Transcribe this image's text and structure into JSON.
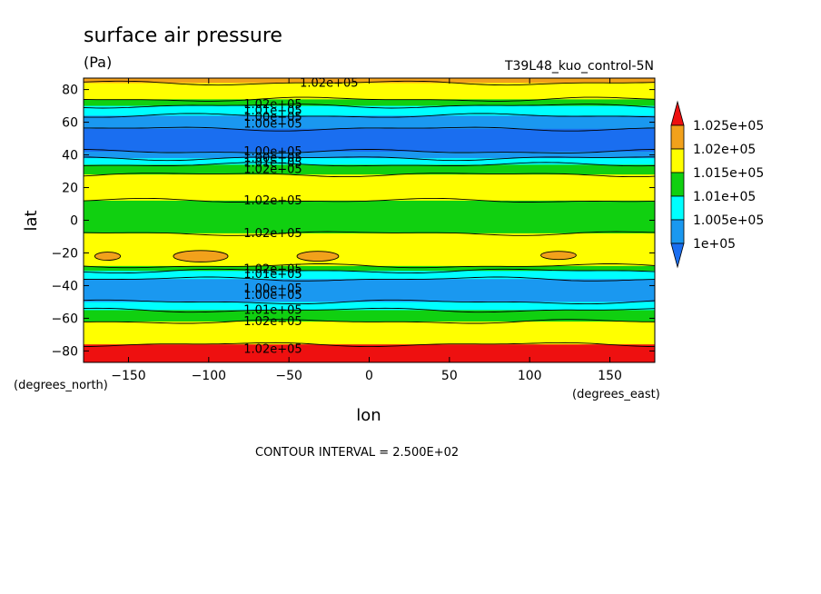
{
  "chart_data": {
    "type": "heatmap",
    "subtype": "filled-contour",
    "title": "surface air pressure",
    "units": "(Pa)",
    "dataset": "T39L48_kuo_control-5N",
    "xlabel": "lon",
    "ylabel": "lat",
    "x_unit_label": "(degrees_east)",
    "y_unit_label": "(degrees_north)",
    "xlim": [
      -178,
      178
    ],
    "ylim": [
      -87,
      87
    ],
    "x_ticks": [
      {
        "value": -150,
        "label": "−150"
      },
      {
        "value": -100,
        "label": "−100"
      },
      {
        "value": -50,
        "label": "−50"
      },
      {
        "value": 0,
        "label": "0"
      },
      {
        "value": 50,
        "label": "50"
      },
      {
        "value": 100,
        "label": "100"
      },
      {
        "value": 150,
        "label": "150"
      }
    ],
    "y_ticks": [
      {
        "value": 80,
        "label": "80"
      },
      {
        "value": 60,
        "label": "60"
      },
      {
        "value": 40,
        "label": "40"
      },
      {
        "value": 20,
        "label": "20"
      },
      {
        "value": 0,
        "label": "0"
      },
      {
        "value": -20,
        "label": "−20"
      },
      {
        "value": -40,
        "label": "−40"
      },
      {
        "value": -60,
        "label": "−60"
      },
      {
        "value": -80,
        "label": "−80"
      }
    ],
    "contour_interval": "CONTOUR INTERVAL = 2.500E+02",
    "legend": {
      "placement": "right",
      "levels": [
        {
          "label": "1.025e+05",
          "color": "#f2a11b"
        },
        {
          "label": "1.02e+05",
          "color": "#ffff00"
        },
        {
          "label": "1.015e+05",
          "color": "#10d010"
        },
        {
          "label": "1.01e+05",
          "color": "#00ffff"
        },
        {
          "label": "1.005e+05",
          "color": "#1a98f0"
        },
        {
          "label": "1e+05",
          "color": "#1a98f0"
        }
      ],
      "over_color": "#ee1010",
      "under_color": "#1a6ef0"
    },
    "latitude_bands": [
      {
        "lat_top": 87,
        "lat_bottom": 84,
        "value_pa": 102600,
        "color": "#f2a11b"
      },
      {
        "lat_top": 84,
        "lat_bottom": 74,
        "value_pa": 102200,
        "color": "#ffff00"
      },
      {
        "lat_top": 74,
        "lat_bottom": 70,
        "value_pa": 101700,
        "color": "#10d010"
      },
      {
        "lat_top": 70,
        "lat_bottom": 64,
        "value_pa": 101300,
        "color": "#00ffff"
      },
      {
        "lat_top": 64,
        "lat_bottom": 56,
        "value_pa": 100800,
        "color": "#1a98f0"
      },
      {
        "lat_top": 56,
        "lat_bottom": 42,
        "value_pa": 100200,
        "color": "#1a6ef0"
      },
      {
        "lat_top": 42,
        "lat_bottom": 38,
        "value_pa": 100800,
        "color": "#1a98f0"
      },
      {
        "lat_top": 38,
        "lat_bottom": 34,
        "value_pa": 101300,
        "color": "#00ffff"
      },
      {
        "lat_top": 34,
        "lat_bottom": 28,
        "value_pa": 101700,
        "color": "#10d010"
      },
      {
        "lat_top": 28,
        "lat_bottom": 12,
        "value_pa": 102200,
        "color": "#ffff00"
      },
      {
        "lat_top": 12,
        "lat_bottom": -8,
        "value_pa": 101700,
        "color": "#10d010"
      },
      {
        "lat_top": -8,
        "lat_bottom": -28,
        "value_pa": 102200,
        "color": "#ffff00"
      },
      {
        "lat_top": -28,
        "lat_bottom": -31,
        "value_pa": 101700,
        "color": "#10d010"
      },
      {
        "lat_top": -31,
        "lat_bottom": -36,
        "value_pa": 101300,
        "color": "#00ffff"
      },
      {
        "lat_top": -36,
        "lat_bottom": -50,
        "value_pa": 100800,
        "color": "#1a98f0"
      },
      {
        "lat_top": -50,
        "lat_bottom": -55,
        "value_pa": 101300,
        "color": "#00ffff"
      },
      {
        "lat_top": -55,
        "lat_bottom": -62,
        "value_pa": 101700,
        "color": "#10d010"
      },
      {
        "lat_top": -62,
        "lat_bottom": -76,
        "value_pa": 102300,
        "color": "#ffff00"
      },
      {
        "lat_top": -76,
        "lat_bottom": -87,
        "value_pa": 103000,
        "color": "#ee1010"
      }
    ],
    "highs": [
      {
        "lon": -163,
        "lat": -22,
        "lon_radius": 8,
        "lat_radius": 2.5,
        "color": "#f2a11b"
      },
      {
        "lon": -105,
        "lat": -22,
        "lon_radius": 17,
        "lat_radius": 3.5,
        "color": "#f2a11b"
      },
      {
        "lon": -32,
        "lat": -22,
        "lon_radius": 13,
        "lat_radius": 3,
        "color": "#f2a11b"
      },
      {
        "lon": 118,
        "lat": -21.5,
        "lon_radius": 11,
        "lat_radius": 2.5,
        "color": "#f2a11b"
      }
    ],
    "contour_labels": [
      {
        "lon": -25,
        "lat": 84,
        "text": "1.02e+05"
      },
      {
        "lon": -60,
        "lat": 71,
        "text": "1.02e+05"
      },
      {
        "lon": -60,
        "lat": 67,
        "text": "1.01e+05"
      },
      {
        "lon": -60,
        "lat": 63,
        "text": "1.00e+05"
      },
      {
        "lon": -60,
        "lat": 59,
        "text": "1.00e+05"
      },
      {
        "lon": -60,
        "lat": 42,
        "text": "1.00e+05"
      },
      {
        "lon": -60,
        "lat": 38,
        "text": "1.00e+05"
      },
      {
        "lon": -60,
        "lat": 35,
        "text": "1.01e+05"
      },
      {
        "lon": -60,
        "lat": 31,
        "text": "1.02e+05"
      },
      {
        "lon": -60,
        "lat": 12,
        "text": "1.02e+05"
      },
      {
        "lon": -60,
        "lat": -8,
        "text": "1.02e+05"
      },
      {
        "lon": -60,
        "lat": -30,
        "text": "1.02e+05"
      },
      {
        "lon": -60,
        "lat": -33,
        "text": "1.01e+05"
      },
      {
        "lon": -60,
        "lat": -42,
        "text": "1.00e+05"
      },
      {
        "lon": -60,
        "lat": -46,
        "text": "1.00e+05"
      },
      {
        "lon": -60,
        "lat": -55,
        "text": "1.01e+05"
      },
      {
        "lon": -60,
        "lat": -62,
        "text": "1.02e+05"
      },
      {
        "lon": -60,
        "lat": -79,
        "text": "1.02e+05"
      }
    ]
  }
}
